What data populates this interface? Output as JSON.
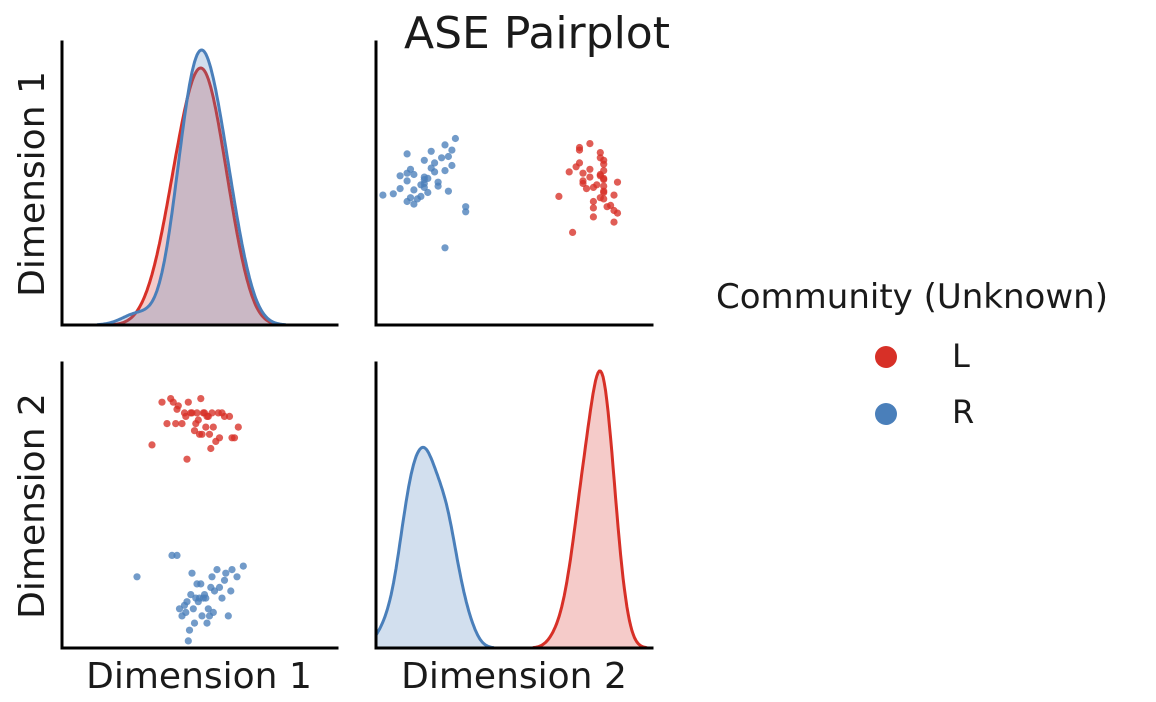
{
  "chart_data": {
    "type": "scatter",
    "subtype": "pairplot",
    "title": "ASE Pairplot",
    "variables": [
      "Dimension 1",
      "Dimension 2"
    ],
    "legend": {
      "title": "Community (Unknown)",
      "placement": "right",
      "entries": [
        {
          "label": "L",
          "color": "#d73027"
        },
        {
          "label": "R",
          "color": "#4a7fba"
        }
      ]
    },
    "dim1_range": [
      -0.62,
      -0.4
    ],
    "dim2_range": [
      -0.4,
      0.4
    ],
    "series": [
      {
        "name": "L",
        "color": "#d73027",
        "dim1": [
          -0.548,
          -0.54,
          -0.536,
          -0.533,
          -0.531,
          -0.529,
          -0.528,
          -0.527,
          -0.524,
          -0.522,
          -0.521,
          -0.52,
          -0.519,
          -0.517,
          -0.516,
          -0.514,
          -0.513,
          -0.512,
          -0.511,
          -0.51,
          -0.509,
          -0.508,
          -0.507,
          -0.506,
          -0.505,
          -0.504,
          -0.503,
          -0.502,
          -0.501,
          -0.5,
          -0.499,
          -0.497,
          -0.495,
          -0.494,
          -0.492,
          -0.49,
          -0.486,
          -0.484,
          -0.482,
          -0.479
        ],
        "dim2": [
          0.17,
          0.29,
          0.23,
          0.3,
          0.29,
          0.23,
          0.27,
          0.28,
          0.23,
          0.26,
          0.25,
          0.13,
          0.29,
          0.26,
          0.26,
          0.21,
          0.23,
          0.26,
          0.24,
          0.2,
          0.3,
          0.2,
          0.26,
          0.26,
          0.22,
          0.25,
          0.25,
          0.2,
          0.16,
          0.26,
          0.22,
          0.18,
          0.26,
          0.19,
          0.26,
          0.25,
          0.25,
          0.19,
          0.19,
          0.22
        ]
      },
      {
        "name": "R",
        "color": "#4a7fba",
        "dim1": [
          -0.56,
          -0.532,
          -0.528,
          -0.526,
          -0.524,
          -0.522,
          -0.521,
          -0.52,
          -0.519,
          -0.518,
          -0.517,
          -0.516,
          -0.515,
          -0.514,
          -0.513,
          -0.512,
          -0.511,
          -0.51,
          -0.509,
          -0.508,
          -0.507,
          -0.506,
          -0.505,
          -0.504,
          -0.503,
          -0.502,
          -0.501,
          -0.5,
          -0.499,
          -0.498,
          -0.496,
          -0.494,
          -0.492,
          -0.49,
          -0.489,
          -0.487,
          -0.485,
          -0.484,
          -0.48,
          -0.475
        ],
        "dim2": [
          -0.2,
          -0.14,
          -0.14,
          -0.29,
          -0.31,
          -0.28,
          -0.3,
          -0.27,
          -0.38,
          -0.35,
          -0.25,
          -0.19,
          -0.29,
          -0.33,
          -0.26,
          -0.22,
          -0.27,
          -0.26,
          -0.22,
          -0.31,
          -0.26,
          -0.25,
          -0.26,
          -0.33,
          -0.29,
          -0.31,
          -0.23,
          -0.2,
          -0.3,
          -0.24,
          -0.18,
          -0.23,
          -0.26,
          -0.21,
          -0.19,
          -0.31,
          -0.24,
          -0.18,
          -0.2,
          -0.17
        ]
      }
    ]
  }
}
